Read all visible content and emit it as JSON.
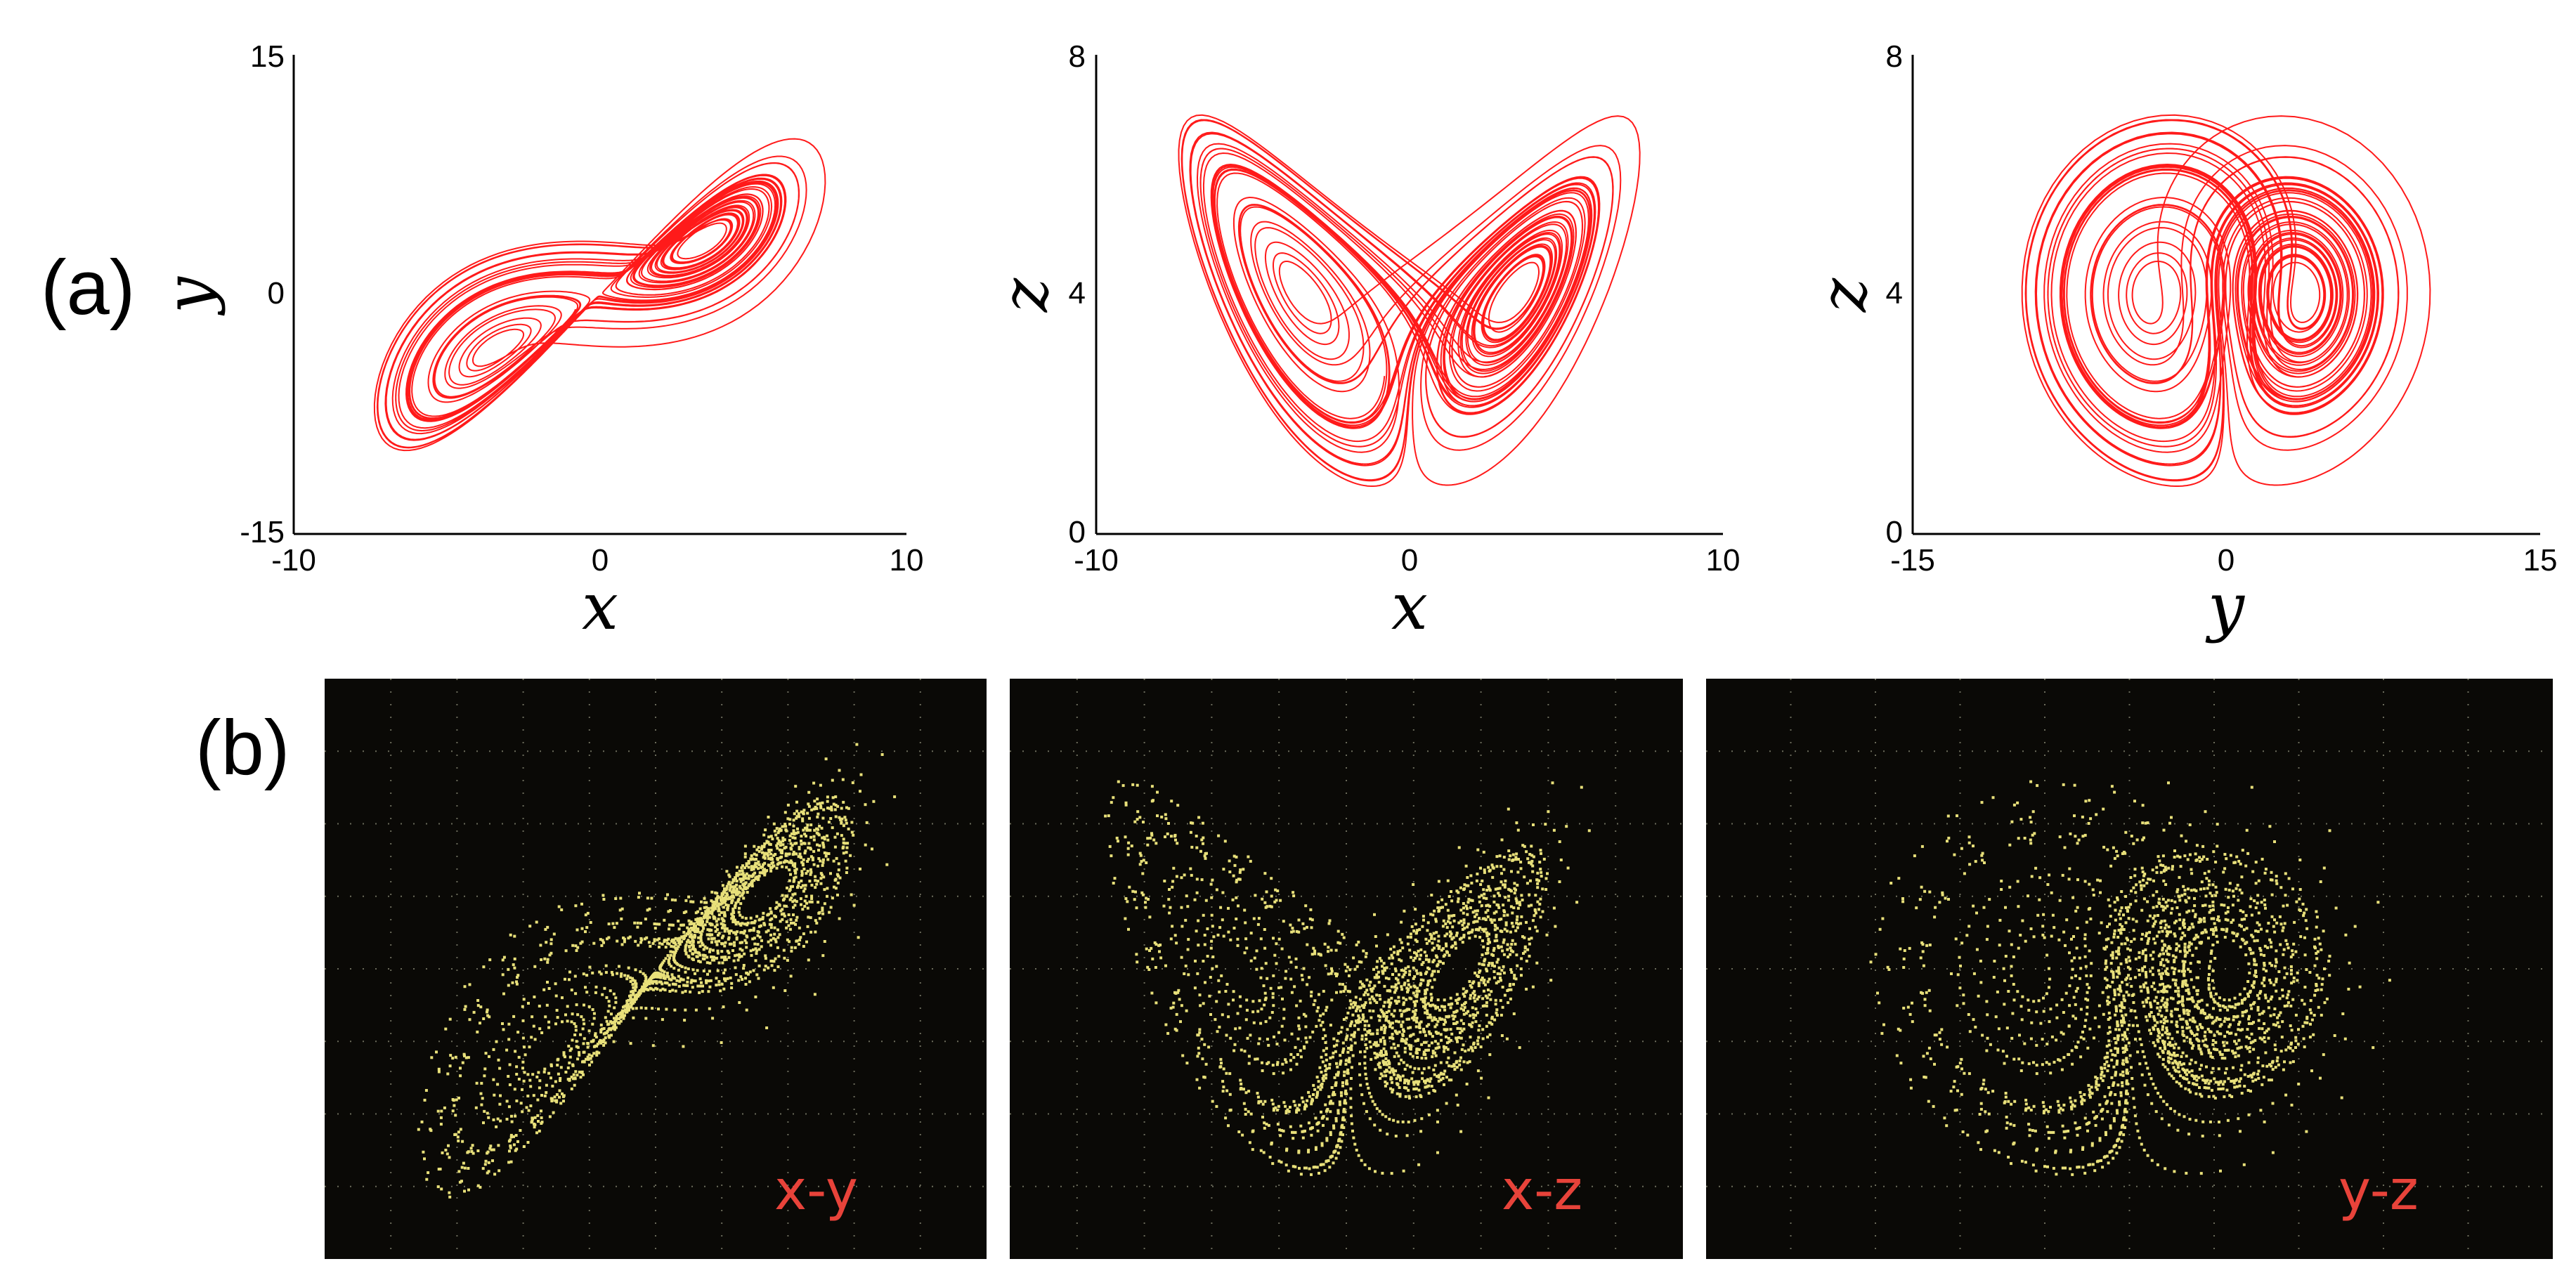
{
  "labels": {
    "a": "(a)",
    "b": "(b)"
  },
  "colors": {
    "trajectory": "#ff1a1a",
    "scope_dots": "#e8e07a",
    "scope_bg": "#0a0906",
    "scope_label": "#e8433a"
  },
  "chart_data": [
    {
      "type": "line",
      "panel": "a",
      "description_vars": {
        "x": "x",
        "y": "y"
      },
      "x_ticks": [
        "-10",
        "0",
        "10"
      ],
      "y_ticks": [
        "-15",
        "0",
        "15"
      ],
      "xlim": [
        -10,
        10
      ],
      "ylim": [
        -15,
        15
      ],
      "xvar": "x",
      "yvar": "y",
      "centers": [
        [
          -3.5,
          -3.5
        ],
        [
          3.5,
          3.5
        ]
      ]
    },
    {
      "type": "line",
      "panel": "a",
      "x_ticks": [
        "-10",
        "0",
        "10"
      ],
      "y_ticks": [
        "0",
        "4",
        "8"
      ],
      "xlim": [
        -10,
        10
      ],
      "ylim": [
        0,
        8
      ],
      "xvar": "x",
      "yvar": "z",
      "centers": [
        [
          -3.5,
          4
        ],
        [
          3.5,
          4
        ]
      ]
    },
    {
      "type": "line",
      "panel": "a",
      "x_ticks": [
        "-15",
        "0",
        "15"
      ],
      "y_ticks": [
        "0",
        "4",
        "8"
      ],
      "xlim": [
        -15,
        15
      ],
      "ylim": [
        0,
        8
      ],
      "xvar": "y",
      "yvar": "z",
      "centers": [
        [
          -3.5,
          4
        ],
        [
          3.5,
          4
        ]
      ]
    },
    {
      "type": "scatter",
      "panel": "b",
      "label": "x-y"
    },
    {
      "type": "scatter",
      "panel": "b",
      "label": "x-z"
    },
    {
      "type": "scatter",
      "panel": "b",
      "label": "y-z"
    }
  ]
}
